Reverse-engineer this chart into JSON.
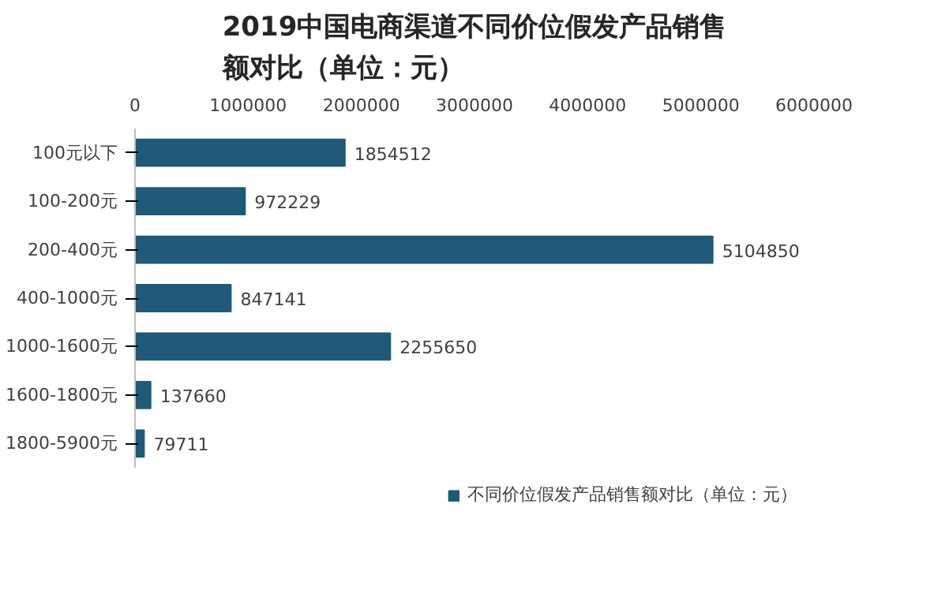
{
  "chart_data": {
    "type": "bar",
    "orientation": "horizontal",
    "title": "2019中国电商渠道不同价位假发产品销售额对比（单位：元）",
    "categories": [
      "100元以下",
      "100-200元",
      "200-400元",
      "400-1000元",
      "1000-1600元",
      "1600-1800元",
      "1800-5900元"
    ],
    "series": [
      {
        "name": "不同价位假发产品销售额对比（单位：元）",
        "color": "#1f5b78",
        "values": [
          1854512,
          972229,
          5104850,
          847141,
          2255650,
          137660,
          79711
        ]
      }
    ],
    "xlim": [
      0,
      6000000
    ],
    "xticks": [
      0,
      1000000,
      2000000,
      3000000,
      4000000,
      5000000,
      6000000
    ],
    "data_labels": true,
    "grid": false,
    "legend": "bottom"
  }
}
